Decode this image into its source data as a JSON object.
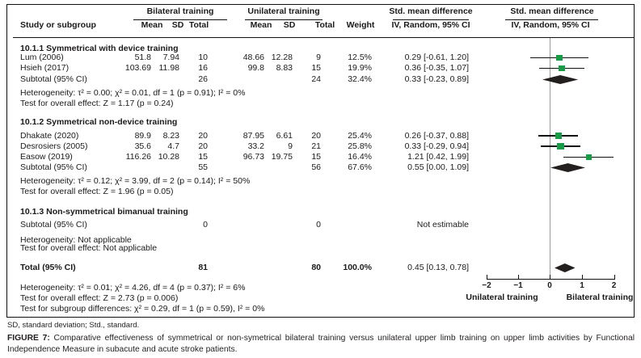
{
  "table": {
    "header": {
      "study": "Study or subgroup",
      "group1": "Bilateral training",
      "group2": "Unilateral training",
      "mean": "Mean",
      "sd": "SD",
      "total": "Total",
      "weight": "Weight",
      "smd": "Std. mean difference",
      "method": "IV, Random, 95% CI"
    },
    "sections": [
      {
        "title": "10.1.1 Symmetrical with device training",
        "rows": [
          {
            "study": "Lum (2006)",
            "mean1": "51.8",
            "sd1": "7.94",
            "total1": "10",
            "mean2": "48.66",
            "sd2": "12.28",
            "total2": "9",
            "weight": "12.5%",
            "ci": "0.29 [-0.61, 1.20]"
          },
          {
            "study": "Hsieh (2017)",
            "mean1": "103.69",
            "sd1": "11.98",
            "total1": "16",
            "mean2": "99.8",
            "sd2": "8.83",
            "total2": "15",
            "weight": "19.9%",
            "ci": "0.36 [-0.35, 1.07]"
          }
        ],
        "subtotal": {
          "study": "Subtotal (95% CI)",
          "total1": "26",
          "total2": "24",
          "weight": "32.4%",
          "ci": "0.33 [-0.23, 0.89]"
        },
        "heterogeneity": "Heterogeneity: τ² = 0.00; χ² = 0.01, df = 1 (p = 0.91); I² = 0%",
        "overall_effect": "Test for overall effect: Z = 1.17 (p = 0.24)"
      },
      {
        "title": "10.1.2 Symmetrical non-device training",
        "rows": [
          {
            "study": "Dhakate (2020)",
            "mean1": "89.9",
            "sd1": "8.23",
            "total1": "20",
            "mean2": "87.95",
            "sd2": "6.61",
            "total2": "20",
            "weight": "25.4%",
            "ci": "0.26 [-0.37, 0.88]"
          },
          {
            "study": "Desrosiers (2005)",
            "mean1": "35.6",
            "sd1": "4.7",
            "total1": "20",
            "mean2": "33.2",
            "sd2": "9",
            "total2": "21",
            "weight": "25.8%",
            "ci": "0.33 [-0.29, 0.94]"
          },
          {
            "study": "Easow (2019)",
            "mean1": "116.26",
            "sd1": "10.28",
            "total1": "15",
            "mean2": "96.73",
            "sd2": "19.75",
            "total2": "15",
            "weight": "16.4%",
            "ci": "1.21 [0.42, 1.99]"
          }
        ],
        "subtotal": {
          "study": "Subtotal (95% CI)",
          "total1": "55",
          "total2": "56",
          "weight": "67.6%",
          "ci": "0.55 [0.00, 1.09]"
        },
        "heterogeneity": "Heterogeneity: τ² = 0.12; χ² = 3.99, df = 2 (p = 0.14); I² = 50%",
        "overall_effect": "Test for overall effect: Z = 1.96 (p = 0.05)"
      },
      {
        "title": "10.1.3 Non-symmetrical bimanual training",
        "subtotal": {
          "study": "Subtotal (95% CI)",
          "total1": "0",
          "total2": "0",
          "weight": "",
          "ci": "Not estimable"
        },
        "heterogeneity": "Heterogeneity: Not applicable",
        "overall_effect": "Test for overall effect: Not applicable"
      }
    ],
    "total_row": {
      "study": "Total (95% CI)",
      "total1": "81",
      "total2": "80",
      "weight": "100.0%",
      "ci": "0.45 [0.13, 0.78]"
    },
    "total_heterogeneity": "Heterogeneity: τ² = 0.01; χ² = 4.26, df = 4 (p = 0.37); I² = 6%",
    "total_overall_effect": "Test for overall effect: Z = 2.73 (p = 0.006)",
    "subgroup_differences": "Test for subgroup differences: χ² = 0.29, df = 1 (p = 0.59), I² = 0%"
  },
  "axis": {
    "ticks": [
      "−2",
      "−1",
      "0",
      "1",
      "2"
    ],
    "left_label": "Unilateral training",
    "right_label": "Bilateral training"
  },
  "footer": {
    "abbreviations": "SD, standard deviation; Std., standard.",
    "caption_label": "FIGURE 7:",
    "caption_text": " Comparative effectiveness of symmetrical or non-symetrical bilateral training versus unilateral upper limb training on upper limb activities by Functional Independence Measure in subacute and acute stroke patients."
  },
  "colors": {
    "marker_green": "#169c46",
    "diamond_black": "#231f1e",
    "zero_line_gray": "#9b9b9b"
  },
  "chart_data": {
    "type": "forest",
    "x_axis": {
      "ticks": [
        -2,
        -1,
        0,
        1,
        2
      ],
      "range": [
        -2.3,
        2.65
      ],
      "left_label": "Unilateral training",
      "right_label": "Bilateral training"
    },
    "points": [
      {
        "id": "lum",
        "label": "Lum (2006)",
        "type": "square",
        "est": 0.29,
        "lo": -0.61,
        "hi": 1.2,
        "weight": 12.5
      },
      {
        "id": "hsieh",
        "label": "Hsieh (2017)",
        "type": "square",
        "est": 0.36,
        "lo": -0.35,
        "hi": 1.07,
        "weight": 19.9
      },
      {
        "id": "sub1",
        "label": "Subtotal 10.1.1",
        "type": "diamond",
        "est": 0.33,
        "lo": -0.23,
        "hi": 0.89
      },
      {
        "id": "dhakate",
        "label": "Dhakate (2020)",
        "type": "square",
        "est": 0.26,
        "lo": -0.37,
        "hi": 0.88,
        "weight": 25.4
      },
      {
        "id": "desrosiers",
        "label": "Desrosiers (2005)",
        "type": "square",
        "est": 0.33,
        "lo": -0.29,
        "hi": 0.94,
        "weight": 25.8
      },
      {
        "id": "easow",
        "label": "Easow (2019)",
        "type": "square",
        "est": 1.21,
        "lo": 0.42,
        "hi": 1.99,
        "weight": 16.4
      },
      {
        "id": "sub2",
        "label": "Subtotal 10.1.2",
        "type": "diamond",
        "est": 0.55,
        "lo": 0.0,
        "hi": 1.09
      },
      {
        "id": "total",
        "label": "Total",
        "type": "diamond",
        "est": 0.45,
        "lo": 0.13,
        "hi": 0.78
      }
    ]
  }
}
